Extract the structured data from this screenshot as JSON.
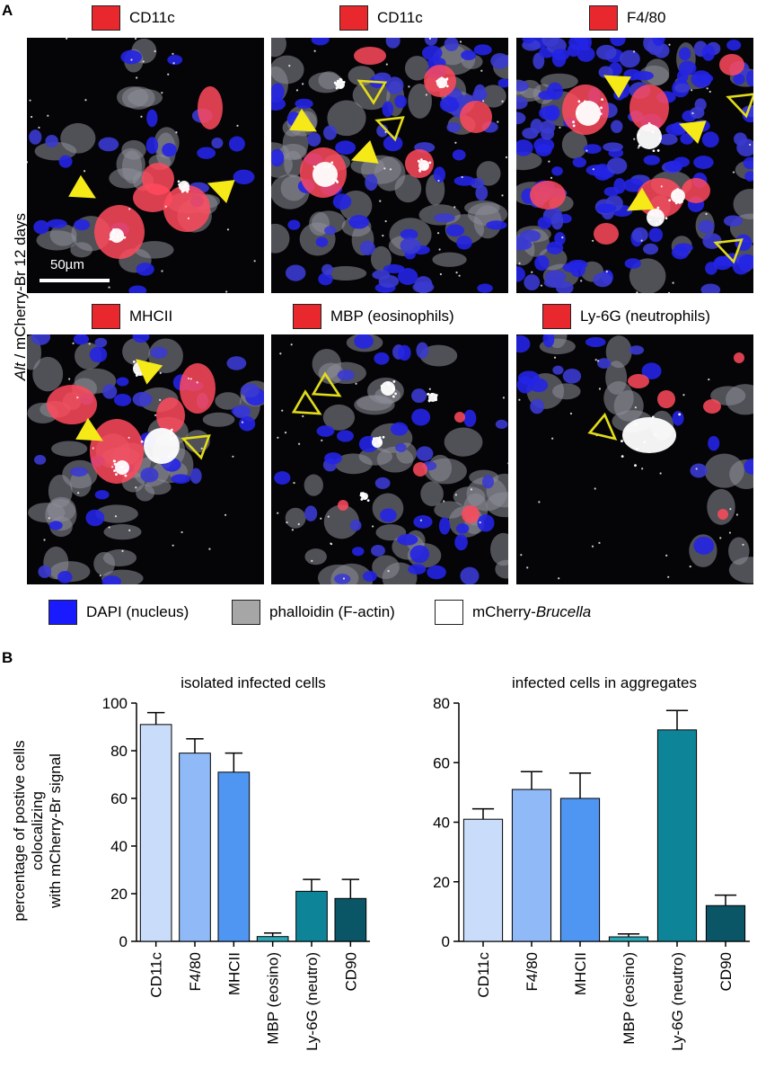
{
  "panel_a": {
    "letter": "A",
    "side_label_italic": "Alt",
    "side_label_rest": " / mCherry-Br 12 days",
    "scale_bar": "50µm",
    "stain_labels": [
      "CD11c",
      "CD11c",
      "F4/80",
      "MHCII",
      "MBP (eosinophils)",
      "Ly-6G (neutrophils)"
    ],
    "legend": [
      {
        "label": "DAPI (nucleus)",
        "color": "#1a1aff"
      },
      {
        "label": "phalloidin (F-actin)",
        "color": "#a6a6a6"
      },
      {
        "label": "mCherry-",
        "italic": "Brucella",
        "color": "#ffffff"
      }
    ],
    "colors": {
      "stain": "#e8282d",
      "arrow_fill": "#f5ea18",
      "arrow_open": "#e2dc1a"
    }
  },
  "panel_b": {
    "letter": "B",
    "ylabel_lines": [
      "percentage of postive cells",
      "colocalizing",
      "with mCherry-Br signal"
    ]
  },
  "chart_data": [
    {
      "type": "bar",
      "title": "isolated infected cells",
      "categories": [
        "CD11c",
        "F4/80",
        "MHCII",
        "MBP (eosino)",
        "Ly-6G (neutro)",
        "CD90"
      ],
      "values": [
        91,
        79,
        71,
        2,
        21,
        18
      ],
      "errors": [
        5,
        6,
        8,
        1.5,
        5,
        8
      ],
      "colors": [
        "#c9ddfa",
        "#8fbaf7",
        "#4f96f2",
        "#2aa9b8",
        "#0e8499",
        "#0a5566"
      ],
      "ylim": [
        0,
        100
      ],
      "yticks": [
        0,
        20,
        40,
        60,
        80,
        100
      ],
      "xlabel": "",
      "ylabel": "percentage of postive cells colocalizing with mCherry-Br signal"
    },
    {
      "type": "bar",
      "title": "infected cells in aggregates",
      "categories": [
        "CD11c",
        "F4/80",
        "MHCII",
        "MBP (eosino)",
        "Ly-6G (neutro)",
        "CD90"
      ],
      "values": [
        41,
        51,
        48,
        1.5,
        71,
        12
      ],
      "errors": [
        3.5,
        6,
        8.5,
        1,
        6.5,
        3.5
      ],
      "colors": [
        "#c9ddfa",
        "#8fbaf7",
        "#4f96f2",
        "#2aa9b8",
        "#0e8499",
        "#0a5566"
      ],
      "ylim": [
        0,
        80
      ],
      "yticks": [
        0,
        20,
        40,
        60,
        80
      ],
      "xlabel": "",
      "ylabel": ""
    }
  ]
}
